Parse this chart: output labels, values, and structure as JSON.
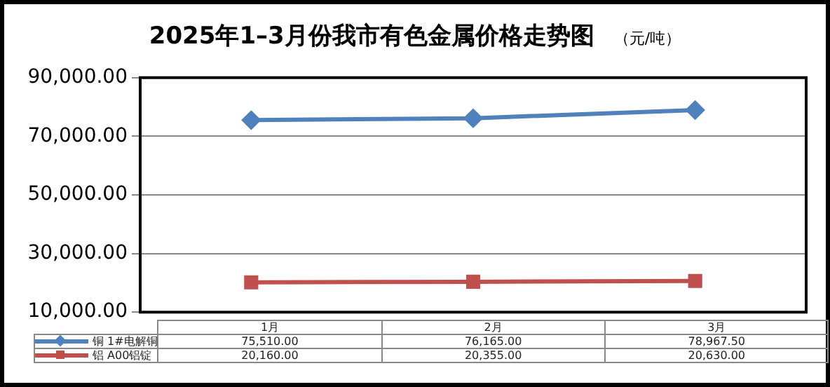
{
  "chart_data": {
    "type": "line",
    "title": "2025年1–3月份我市有色金属价格走势图",
    "subtitle": "（元/吨）",
    "categories": [
      "1月",
      "2月",
      "3月"
    ],
    "series": [
      {
        "name": "铜 1#电解铜",
        "color": "#4f81bd",
        "marker": "diamond",
        "values": [
          75510,
          76165,
          78967.5
        ],
        "value_labels": [
          "75,510.00",
          "76,165.00",
          "78,967.50"
        ]
      },
      {
        "name": "铝 A00铝锭",
        "color": "#c0504d",
        "marker": "square",
        "values": [
          20160,
          20355,
          20630
        ],
        "value_labels": [
          "20,160.00",
          "20,355.00",
          "20,630.00"
        ]
      }
    ],
    "ylim": [
      10000,
      90000
    ],
    "yticks": [
      {
        "value": 10000,
        "label": "10,000.00"
      },
      {
        "value": 30000,
        "label": "30,000.00"
      },
      {
        "value": 50000,
        "label": "50,000.00"
      },
      {
        "value": 70000,
        "label": "70,000.00"
      },
      {
        "value": 90000,
        "label": "90,000.00"
      }
    ],
    "grid": "y",
    "legend": "bottom",
    "line_style": "solid"
  }
}
